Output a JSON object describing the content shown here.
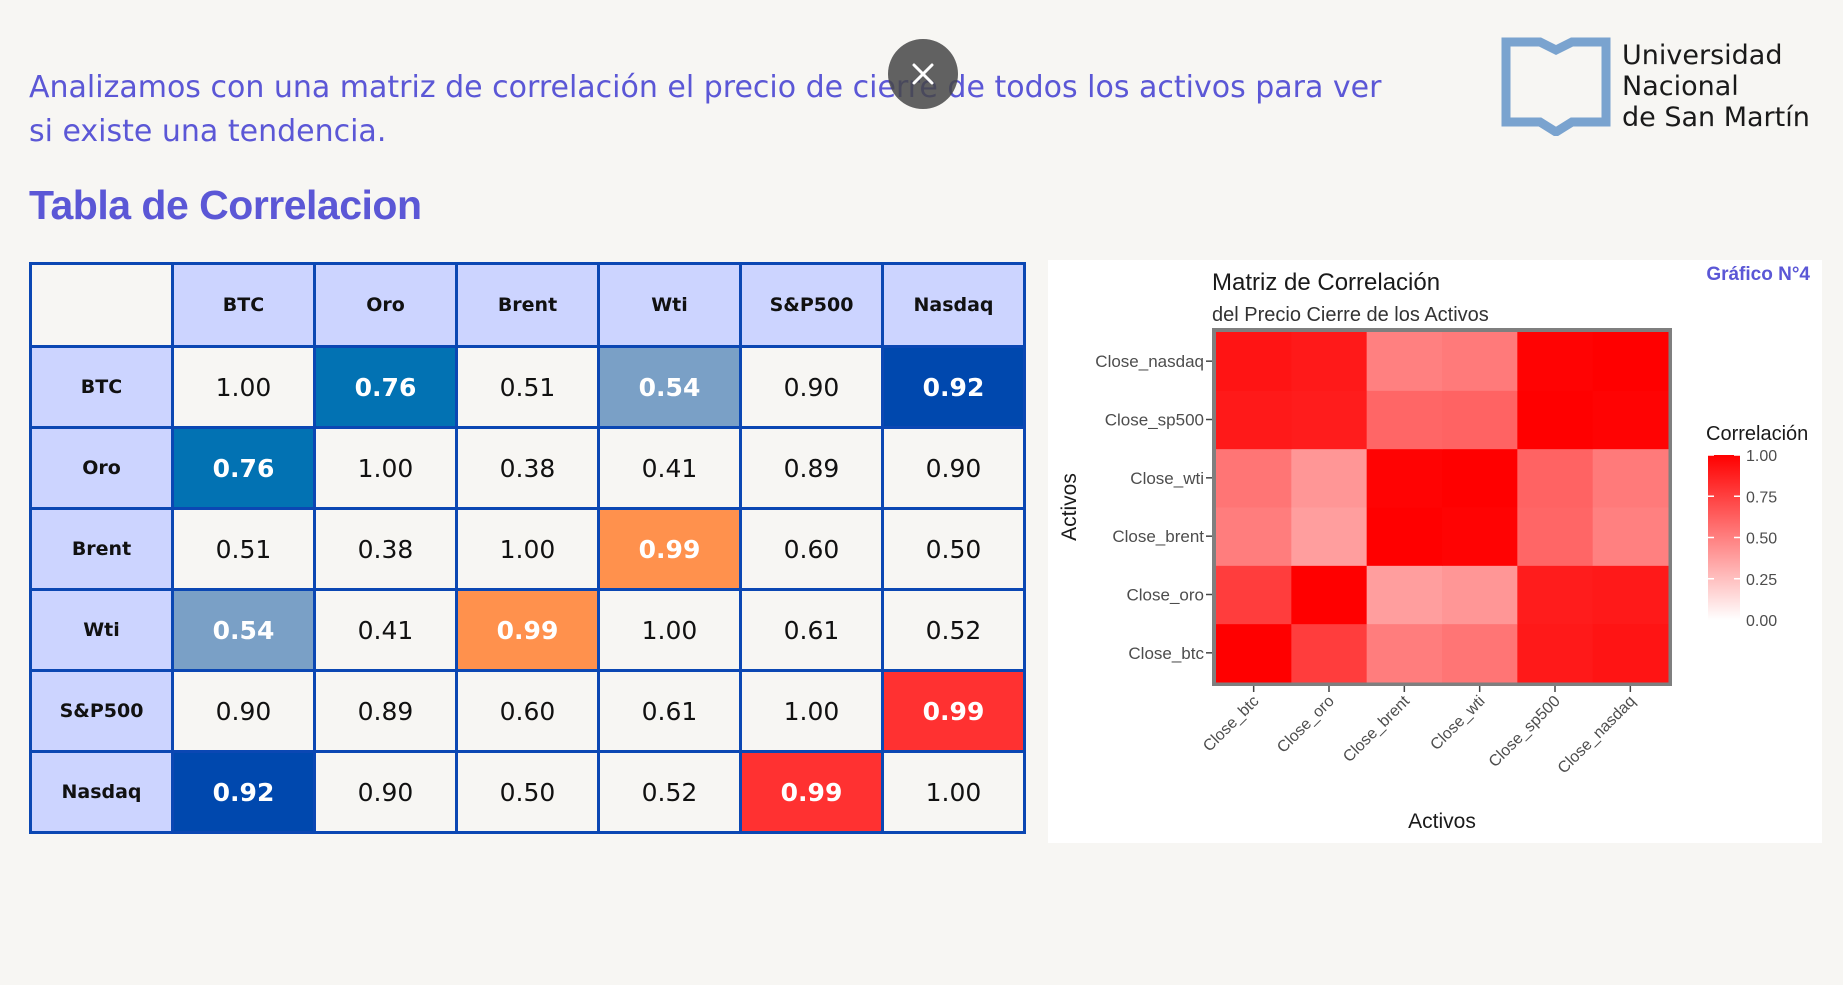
{
  "intro": "Analizamos con una matriz de correlación el precio de cierre de todos los activos para ver si existe una tendencia.",
  "close_icon": "close-icon",
  "logo": {
    "icon": "open-book-logo-icon",
    "line1": "Universidad",
    "line2": "Nacional",
    "line3": "de San Martín",
    "color": "#7aa3cf"
  },
  "section_title": "Tabla de Correlacion",
  "table": {
    "headers": [
      "BTC",
      "Oro",
      "Brent",
      "Wti",
      "S&P500",
      "Nasdaq"
    ],
    "rows": [
      {
        "label": "BTC",
        "values": [
          "1.00",
          "0.76",
          "0.51",
          "0.54",
          "0.90",
          "0.92"
        ]
      },
      {
        "label": "Oro",
        "values": [
          "0.76",
          "1.00",
          "0.38",
          "0.41",
          "0.89",
          "0.90"
        ]
      },
      {
        "label": "Brent",
        "values": [
          "0.51",
          "0.38",
          "1.00",
          "0.99",
          "0.60",
          "0.50"
        ]
      },
      {
        "label": "Wti",
        "values": [
          "0.54",
          "0.41",
          "0.99",
          "1.00",
          "0.61",
          "0.52"
        ]
      },
      {
        "label": "S&P500",
        "values": [
          "0.90",
          "0.89",
          "0.60",
          "0.61",
          "1.00",
          "0.99"
        ]
      },
      {
        "label": "Nasdaq",
        "values": [
          "0.92",
          "0.90",
          "0.50",
          "0.52",
          "0.99",
          "1.00"
        ]
      }
    ],
    "highlights": [
      {
        "row": 0,
        "col": 1,
        "color": "#0272b3"
      },
      {
        "row": 1,
        "col": 0,
        "color": "#0272b3"
      },
      {
        "row": 0,
        "col": 3,
        "color": "#7aa0c6"
      },
      {
        "row": 3,
        "col": 0,
        "color": "#7aa0c6"
      },
      {
        "row": 0,
        "col": 5,
        "color": "#0048ae"
      },
      {
        "row": 5,
        "col": 0,
        "color": "#0048ae"
      },
      {
        "row": 2,
        "col": 3,
        "color": "#ff914d"
      },
      {
        "row": 3,
        "col": 2,
        "color": "#ff914d"
      },
      {
        "row": 4,
        "col": 5,
        "color": "#ff3131"
      },
      {
        "row": 5,
        "col": 4,
        "color": "#ff3131"
      }
    ],
    "header_bg": "#ccd4ff",
    "border_color": "#0b47b3"
  },
  "chart_data": {
    "type": "heatmap",
    "title": "Matriz de Correlación",
    "subtitle": "del Precio Cierre de los Activos",
    "xlabel": "Activos",
    "ylabel": "Activos",
    "x_categories": [
      "Close_btc",
      "Close_oro",
      "Close_brent",
      "Close_wti",
      "Close_sp500",
      "Close_nasdaq"
    ],
    "y_categories": [
      "Close_btc",
      "Close_oro",
      "Close_brent",
      "Close_wti",
      "Close_sp500",
      "Close_nasdaq"
    ],
    "values": [
      [
        1.0,
        0.76,
        0.51,
        0.54,
        0.9,
        0.92
      ],
      [
        0.76,
        1.0,
        0.38,
        0.41,
        0.89,
        0.9
      ],
      [
        0.51,
        0.38,
        1.0,
        0.99,
        0.6,
        0.5
      ],
      [
        0.54,
        0.41,
        0.99,
        1.0,
        0.61,
        0.52
      ],
      [
        0.9,
        0.89,
        0.6,
        0.61,
        1.0,
        0.99
      ],
      [
        0.92,
        0.9,
        0.5,
        0.52,
        0.99,
        1.0
      ]
    ],
    "legend_title": "Correlación",
    "legend_ticks": [
      "1.00",
      "0.75",
      "0.50",
      "0.25",
      "0.00"
    ],
    "legend_placement": "right",
    "color_low": "#ffffff",
    "color_high": "#ff0000",
    "grid": false,
    "label": "Gráfico N°4"
  }
}
